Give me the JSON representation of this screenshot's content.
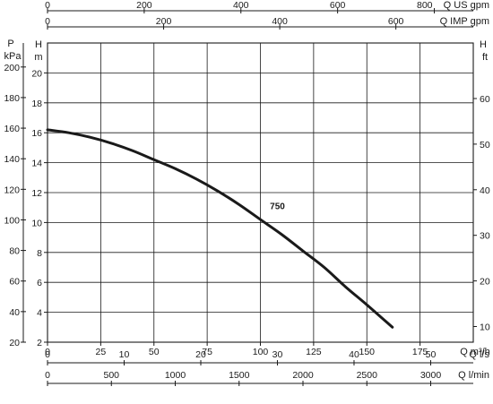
{
  "chart_data": {
    "type": "line",
    "grid": true,
    "x": {
      "unit": "Q m³/h",
      "range": [
        0,
        200
      ],
      "ticks": [
        0,
        25,
        50,
        75,
        100,
        125,
        150,
        175
      ],
      "tick_labels": [
        "0",
        "25",
        "50",
        "75",
        "100",
        "125",
        "150",
        "175"
      ]
    },
    "y_left": {
      "unit": "H\nm",
      "range": [
        2,
        22
      ],
      "ticks": [
        2,
        4,
        6,
        8,
        10,
        12,
        14,
        16,
        18,
        20
      ],
      "tick_labels": [
        "2",
        "4",
        "6",
        "8",
        "10",
        "12",
        "14",
        "16",
        "18",
        "20"
      ]
    },
    "y_pressure": {
      "unit": "P\nkPa",
      "range": [
        20,
        215.7
      ],
      "ticks": [
        20,
        40,
        60,
        80,
        100,
        120,
        140,
        160,
        180,
        200
      ],
      "tick_labels": [
        "20",
        "40",
        "60",
        "80",
        "100",
        "120",
        "140",
        "160",
        "180",
        "200"
      ]
    },
    "y_right": {
      "unit": "H\nft",
      "range": [
        6.56,
        72.18
      ],
      "ticks": [
        10,
        20,
        30,
        40,
        50,
        60
      ],
      "tick_labels": [
        "10",
        "20",
        "30",
        "40",
        "50",
        "60"
      ]
    },
    "top_axes": [
      {
        "unit": "Q US gpm",
        "range": [
          0,
          880.6
        ],
        "ticks": [
          0,
          200,
          400,
          600,
          800
        ],
        "tick_labels": [
          "0",
          "200",
          "400",
          "600",
          "800"
        ]
      },
      {
        "unit": "Q IMP gpm",
        "range": [
          0,
          733.3
        ],
        "ticks": [
          0,
          200,
          400,
          600
        ],
        "tick_labels": [
          "0",
          "200",
          "400",
          "600"
        ]
      }
    ],
    "bottom_axes": [
      {
        "unit": "Q l/s",
        "range": [
          0,
          55.56
        ],
        "ticks": [
          0,
          10,
          20,
          30,
          40,
          50
        ],
        "tick_labels": [
          "0",
          "10",
          "20",
          "30",
          "40",
          "50"
        ]
      },
      {
        "unit": "Q l/min",
        "range": [
          0,
          3333.3
        ],
        "ticks": [
          0,
          500,
          1000,
          1500,
          2000,
          2500,
          3000
        ],
        "tick_labels": [
          "0",
          "500",
          "1000",
          "1500",
          "2000",
          "2500",
          "3000"
        ]
      }
    ],
    "series": [
      {
        "name": "750",
        "color": "#1a1a1a",
        "x": [
          0,
          10,
          20,
          30,
          40,
          50,
          60,
          70,
          80,
          90,
          100,
          110,
          120,
          130,
          140,
          150,
          162
        ],
        "y": [
          16.2,
          16.0,
          15.7,
          15.3,
          14.8,
          14.2,
          13.6,
          12.9,
          12.1,
          11.2,
          10.2,
          9.2,
          8.1,
          7.0,
          5.7,
          4.5,
          3.0
        ]
      }
    ]
  }
}
